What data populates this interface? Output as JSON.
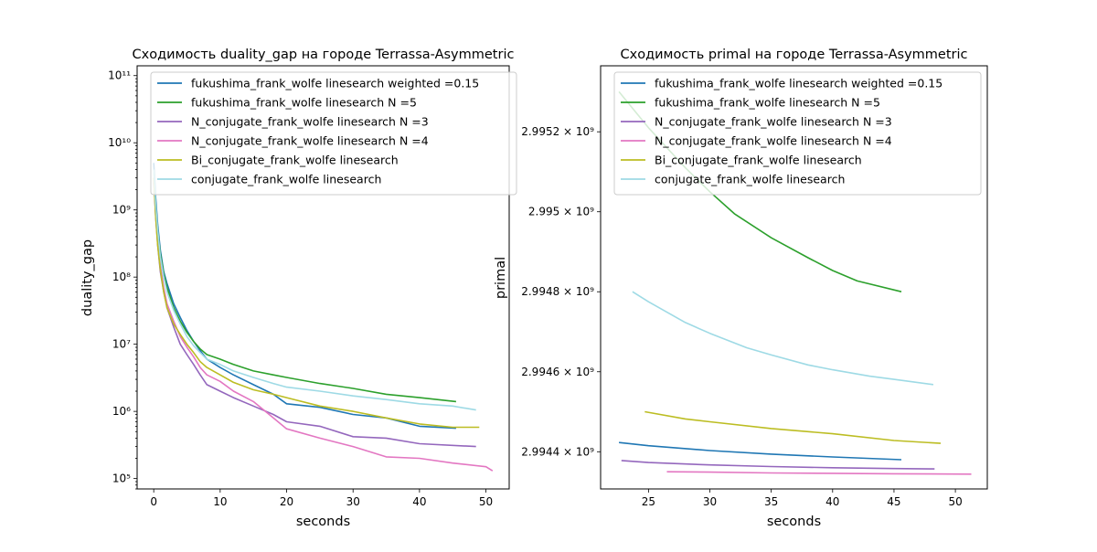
{
  "series_styles": [
    {
      "name": "fukushima_frank_wolfe linesearch weighted =0.15",
      "color": "#1f77b4"
    },
    {
      "name": "fukushima_frank_wolfe linesearch N =5",
      "color": "#2ca02c"
    },
    {
      "name": "N_conjugate_frank_wolfe linesearch N =3",
      "color": "#9467bd"
    },
    {
      "name": "N_conjugate_frank_wolfe linesearch N =4",
      "color": "#e377c2"
    },
    {
      "name": "Bi_conjugate_frank_wolfe linesearch",
      "color": "#bcbd22"
    },
    {
      "name": "conjugate_frank_wolfe linesearch",
      "color": "#9edae5"
    }
  ],
  "chart_data": [
    {
      "type": "line",
      "title": "Сходимость duality_gap на городе Terrassa-Asymmetric",
      "xlabel": "seconds",
      "ylabel": "duality_gap",
      "xscale": "linear",
      "yscale": "log",
      "xlim": [
        -2.5,
        53.5
      ],
      "ylim": [
        70000,
        140000000000
      ],
      "xticks": [
        0,
        10,
        20,
        30,
        40,
        50
      ],
      "xtick_labels": [
        "0",
        "10",
        "20",
        "30",
        "40",
        "50"
      ],
      "yticks": [
        100000,
        1000000,
        10000000,
        100000000,
        1000000000,
        10000000000,
        100000000000
      ],
      "ytick_labels": [
        "10⁵",
        "10⁶",
        "10⁷",
        "10⁸",
        "10⁹",
        "10¹⁰",
        "10¹¹"
      ],
      "legend": "top-right",
      "series": [
        {
          "name": "fukushima_frank_wolfe linesearch weighted =0.15",
          "x": [
            0,
            0.3,
            0.6,
            1,
            1.5,
            2,
            3,
            4,
            5,
            6,
            7,
            8,
            10,
            12,
            15,
            18,
            20,
            25,
            30,
            35,
            40,
            45.5
          ],
          "y": [
            5000000000.0,
            1500000000.0,
            600000000.0,
            250000000.0,
            120000000.0,
            80000000.0,
            40000000.0,
            25000000.0,
            16000000.0,
            11000000.0,
            8000000.0,
            6000000.0,
            4500000.0,
            3500000.0,
            2500000.0,
            1800000.0,
            1300000.0,
            1150000.0,
            900000.0,
            800000.0,
            600000.0,
            560000.0
          ]
        },
        {
          "name": "fukushima_frank_wolfe linesearch N =5",
          "x": [
            0,
            0.3,
            0.6,
            1,
            1.5,
            2,
            3,
            4,
            5,
            6,
            7,
            8,
            10,
            12,
            15,
            18,
            20,
            25,
            30,
            35,
            40,
            45.5
          ],
          "y": [
            4000000000.0,
            1200000000.0,
            500000000.0,
            220000000.0,
            110000000.0,
            70000000.0,
            35000000.0,
            22000000.0,
            15000000.0,
            11000000.0,
            8500000.0,
            7000000.0,
            6000000.0,
            5000000.0,
            4000000.0,
            3500000.0,
            3200000.0,
            2600000.0,
            2200000.0,
            1800000.0,
            1600000.0,
            1400000.0
          ]
        },
        {
          "name": "N_conjugate_frank_wolfe linesearch N =3",
          "x": [
            0,
            0.3,
            0.6,
            1,
            1.5,
            2,
            3,
            4,
            5,
            6,
            7,
            8,
            10,
            12,
            15,
            18,
            20,
            25,
            30,
            35,
            40,
            48.5
          ],
          "y": [
            3000000000.0,
            800000000.0,
            300000000.0,
            120000000.0,
            60000000.0,
            35000000.0,
            18000000.0,
            10000000.0,
            7000000.0,
            5000000.0,
            3500000.0,
            2500000.0,
            2000000.0,
            1600000.0,
            1200000.0,
            900000.0,
            700000.0,
            600000.0,
            420000.0,
            400000.0,
            330000.0,
            300000.0
          ]
        },
        {
          "name": "N_conjugate_frank_wolfe linesearch N =4",
          "x": [
            0,
            0.3,
            0.6,
            1,
            1.5,
            2,
            3,
            4,
            5,
            6,
            7,
            8,
            10,
            12,
            15,
            18,
            20,
            25,
            30,
            35,
            40,
            45,
            50,
            51
          ],
          "y": [
            3000000000.0,
            900000000.0,
            350000000.0,
            150000000.0,
            70000000.0,
            40000000.0,
            22000000.0,
            13000000.0,
            9000000.0,
            6500000.0,
            4500000.0,
            3500000.0,
            2800000.0,
            2000000.0,
            1400000.0,
            800000.0,
            550000.0,
            400000.0,
            300000.0,
            210000.0,
            200000.0,
            170000.0,
            150000.0,
            130000.0
          ]
        },
        {
          "name": "Bi_conjugate_frank_wolfe linesearch",
          "x": [
            0,
            0.3,
            0.6,
            1,
            1.5,
            2,
            3,
            4,
            5,
            6,
            7,
            8,
            10,
            12,
            15,
            18,
            20,
            25,
            30,
            35,
            40,
            45,
            49
          ],
          "y": [
            3000000000.0,
            800000000.0,
            300000000.0,
            130000000.0,
            60000000.0,
            35000000.0,
            20000000.0,
            14000000.0,
            10000000.0,
            7500000.0,
            5500000.0,
            4500000.0,
            3500000.0,
            2700000.0,
            2100000.0,
            1800000.0,
            1600000.0,
            1200000.0,
            1000000.0,
            800000.0,
            650000.0,
            580000.0,
            580000.0
          ]
        },
        {
          "name": "conjugate_frank_wolfe linesearch",
          "x": [
            0,
            0.3,
            0.6,
            1,
            1.5,
            2,
            3,
            4,
            5,
            6,
            7,
            8,
            10,
            12,
            15,
            18,
            20,
            25,
            30,
            35,
            40,
            45,
            48.5
          ],
          "y": [
            4000000000.0,
            1200000000.0,
            500000000.0,
            200000000.0,
            100000000.0,
            60000000.0,
            32000000.0,
            20000000.0,
            13000000.0,
            9500000.0,
            7500000.0,
            6000000.0,
            5000000.0,
            4000000.0,
            3200000.0,
            2600000.0,
            2300000.0,
            2000000.0,
            1700000.0,
            1500000.0,
            1300000.0,
            1200000.0,
            1050000.0
          ]
        }
      ]
    },
    {
      "type": "line",
      "title": "Сходимость primal на городе Terrassa-Asymmetric",
      "xlabel": "seconds",
      "ylabel": "primal",
      "xscale": "linear",
      "yscale": "log",
      "xlim": [
        21.1,
        52.6
      ],
      "ylim": [
        2994307000,
        2995365000
      ],
      "xticks": [
        25,
        30,
        35,
        40,
        45,
        50
      ],
      "xtick_labels": [
        "25",
        "30",
        "35",
        "40",
        "45",
        "50"
      ],
      "yticks": [
        2994400000,
        2994600000,
        2994800000,
        2995000000,
        2995200000
      ],
      "ytick_labels": [
        "2.9944 × 10⁹",
        "2.9946 × 10⁹",
        "2.9948 × 10⁹",
        "2.995 × 10⁹",
        "2.9952 × 10⁹"
      ],
      "legend": "top-right",
      "series": [
        {
          "name": "fukushima_frank_wolfe linesearch weighted =0.15",
          "x": [
            22.6,
            25,
            30,
            35,
            40,
            45.6
          ],
          "y": [
            2994423000,
            2994415000,
            2994403000,
            2994394000,
            2994387000,
            2994380000
          ]
        },
        {
          "name": "fukushima_frank_wolfe linesearch N =5",
          "x": [
            22.6,
            25,
            28,
            30,
            32,
            35,
            38,
            40,
            42,
            45.6
          ],
          "y": [
            2995300000,
            2995210000,
            2995110000,
            2995050000,
            2994995000,
            2994935000,
            2994885000,
            2994853000,
            2994827000,
            2994800000
          ]
        },
        {
          "name": "N_conjugate_frank_wolfe linesearch N =3",
          "x": [
            22.8,
            25,
            30,
            35,
            40,
            45,
            48.3
          ],
          "y": [
            2994378000,
            2994373000,
            2994367000,
            2994363000,
            2994360000,
            2994358000,
            2994357000
          ]
        },
        {
          "name": "N_conjugate_frank_wolfe linesearch N =4",
          "x": [
            26.5,
            30,
            35,
            40,
            45,
            51.3
          ],
          "y": [
            2994350000,
            2994349000,
            2994347000,
            2994346000,
            2994345000,
            2994344000
          ]
        },
        {
          "name": "Bi_conjugate_frank_wolfe linesearch",
          "x": [
            24.7,
            28,
            30,
            35,
            40,
            45,
            48.8
          ],
          "y": [
            2994500000,
            2994482000,
            2994475000,
            2994458000,
            2994445000,
            2994428000,
            2994421000
          ]
        },
        {
          "name": "conjugate_frank_wolfe linesearch",
          "x": [
            23.7,
            25,
            28,
            30,
            33,
            35,
            38,
            40,
            43,
            45,
            48.2
          ],
          "y": [
            2994800000,
            2994775000,
            2994723000,
            2994696000,
            2994660000,
            2994642000,
            2994617000,
            2994605000,
            2994589000,
            2994581000,
            2994568000
          ]
        }
      ]
    }
  ]
}
